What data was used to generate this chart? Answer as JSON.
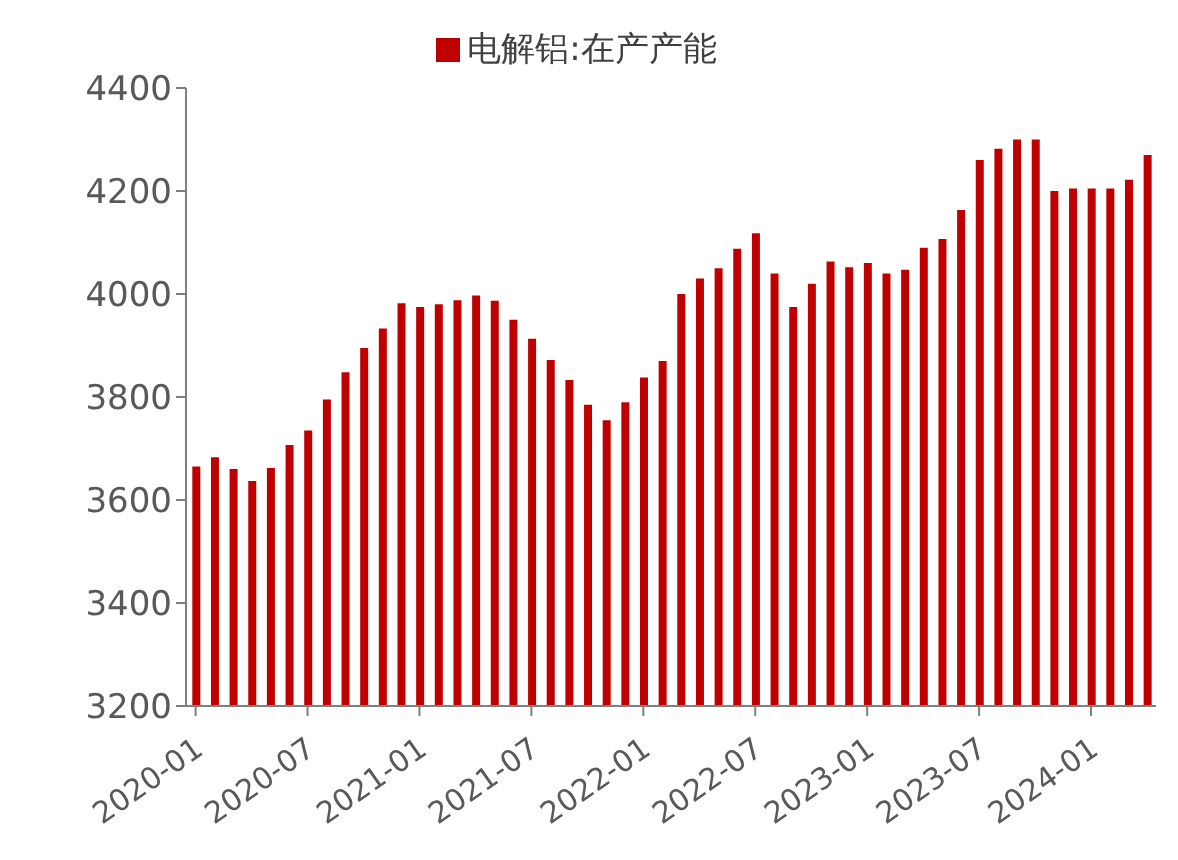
{
  "chart_data": {
    "type": "bar",
    "x": [
      "2020-01",
      "2020-02",
      "2020-03",
      "2020-04",
      "2020-05",
      "2020-06",
      "2020-07",
      "2020-08",
      "2020-09",
      "2020-10",
      "2020-11",
      "2020-12",
      "2021-01",
      "2021-02",
      "2021-03",
      "2021-04",
      "2021-05",
      "2021-06",
      "2021-07",
      "2021-08",
      "2021-09",
      "2021-10",
      "2021-11",
      "2021-12",
      "2022-01",
      "2022-02",
      "2022-03",
      "2022-04",
      "2022-05",
      "2022-06",
      "2022-07",
      "2022-08",
      "2022-09",
      "2022-10",
      "2022-11",
      "2022-12",
      "2023-01",
      "2023-02",
      "2023-03",
      "2023-04",
      "2023-05",
      "2023-06",
      "2023-07",
      "2023-08",
      "2023-09",
      "2023-10",
      "2023-11",
      "2023-12",
      "2024-01",
      "2024-02",
      "2024-03",
      "2024-04"
    ],
    "series": [
      {
        "name": "电解铝:在产产能",
        "color": "#c00000",
        "values": [
          3665,
          3683,
          3660,
          3637,
          3662,
          3707,
          3735,
          3795,
          3848,
          3895,
          3933,
          3982,
          3975,
          3980,
          3988,
          3997,
          3987,
          3950,
          3913,
          3872,
          3833,
          3785,
          3755,
          3790,
          3838,
          3870,
          4000,
          4030,
          4050,
          4088,
          4118,
          4040,
          3975,
          4020,
          4063,
          4052,
          4060,
          4040,
          4047,
          4090,
          4107,
          4163,
          4260,
          4282,
          4300,
          4300,
          4200,
          4205,
          4205,
          4205,
          4222,
          4270
        ]
      }
    ],
    "xlim": [
      "2019-12-16",
      "2024-04-16"
    ],
    "xticks": [
      "2020-01",
      "2020-07",
      "2021-01",
      "2021-07",
      "2022-01",
      "2022-07",
      "2023-01",
      "2023-07",
      "2024-01"
    ],
    "ylim": [
      3200,
      4400
    ],
    "yticks": [
      3200,
      3400,
      3600,
      3800,
      4000,
      4200,
      4400
    ],
    "legend": "top",
    "grid": false
  }
}
